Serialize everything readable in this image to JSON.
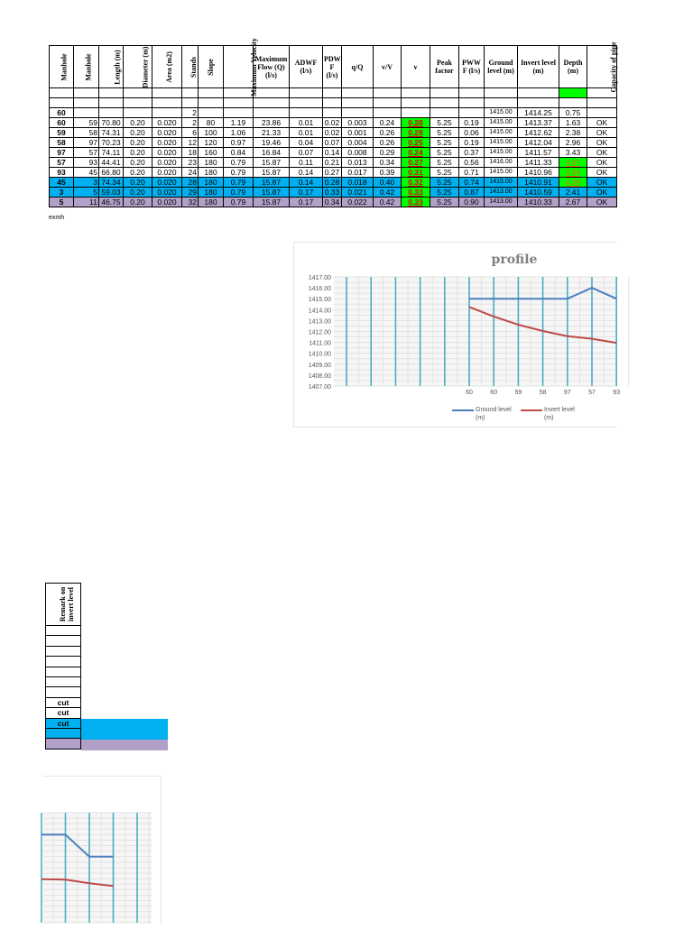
{
  "table": {
    "headers": [
      {
        "label": "Manhole",
        "rot": true
      },
      {
        "label": "Manhole",
        "rot": true
      },
      {
        "label": "Length (m)",
        "rot": true
      },
      {
        "label": "Diameter (m)",
        "rot": true
      },
      {
        "label": "Area (m2)",
        "rot": true
      },
      {
        "label": "Stands",
        "rot": true
      },
      {
        "label": "Slope",
        "rot": true
      },
      {
        "label": "Maximum Velocity",
        "rot": true
      },
      {
        "label": "Maximum Flow (Q) (l/s)",
        "rot": false
      },
      {
        "label": "ADWF (l/s)",
        "rot": false
      },
      {
        "label": "PDW F (l/s)",
        "rot": false
      },
      {
        "label": "q/Q",
        "rot": false
      },
      {
        "label": "v/V",
        "rot": false
      },
      {
        "label": "v",
        "rot": false
      },
      {
        "label": "Peak factor",
        "rot": false
      },
      {
        "label": "PWW F (l/s)",
        "rot": false
      },
      {
        "label": "Ground level (m)",
        "rot": false
      },
      {
        "label": "Invert level (m)",
        "rot": false
      },
      {
        "label": "Depth (m)",
        "rot": false
      },
      {
        "label": "Capacity of pipe",
        "rot": true
      }
    ],
    "rows": [
      {
        "cells": [
          "",
          "",
          "",
          "",
          "",
          "",
          "",
          "",
          "",
          "",
          "",
          "",
          "",
          "",
          "",
          "",
          "",
          "",
          "",
          ""
        ],
        "depth_fill": "#00ff00"
      },
      {
        "cells": [
          "",
          "",
          "",
          "",
          "",
          "",
          "",
          "",
          "",
          "",
          "",
          "",
          "",
          "",
          "",
          "",
          "",
          "",
          "",
          ""
        ]
      },
      {
        "cells": [
          "60",
          "",
          "",
          "",
          "",
          "2",
          "",
          "",
          "",
          "",
          "",
          "",
          "",
          "",
          "",
          "",
          "1415.00",
          "1414.25",
          "0.75",
          ""
        ]
      },
      {
        "cells": [
          "60",
          "59",
          "70.80",
          "0.20",
          "0.020",
          "2",
          "80",
          "1.19",
          "23.86",
          "0.01",
          "0.02",
          "0.003",
          "0.24",
          "0.28",
          "5.25",
          "0.19",
          "1415.00",
          "1413.37",
          "1.63",
          "OK"
        ]
      },
      {
        "cells": [
          "59",
          "58",
          "74.31",
          "0.20",
          "0.020",
          "6",
          "100",
          "1.06",
          "21.33",
          "0.01",
          "0.02",
          "0.001",
          "0.26",
          "0.28",
          "5.25",
          "0.06",
          "1415.00",
          "1412.62",
          "2.38",
          "OK"
        ]
      },
      {
        "cells": [
          "58",
          "97",
          "70.23",
          "0.20",
          "0.020",
          "12",
          "120",
          "0.97",
          "19.46",
          "0.04",
          "0.07",
          "0.004",
          "0.26",
          "0.25",
          "5.25",
          "0.19",
          "1415.00",
          "1412.04",
          "2.96",
          "OK"
        ]
      },
      {
        "cells": [
          "97",
          "57",
          "74.11",
          "0.20",
          "0.020",
          "18",
          "160",
          "0.84",
          "16.84",
          "0.07",
          "0.14",
          "0.008",
          "0.29",
          "0.24",
          "5.25",
          "0.37",
          "1415.00",
          "1411.57",
          "3.43",
          "OK"
        ]
      },
      {
        "cells": [
          "57",
          "93",
          "44.41",
          "0.20",
          "0.020",
          "23",
          "180",
          "0.79",
          "15.87",
          "0.11",
          "0.21",
          "0.013",
          "0.34",
          "0.27",
          "5.25",
          "0.56",
          "1416.00",
          "1411.33",
          "4.67",
          "OK"
        ],
        "depth_flag": true
      },
      {
        "cells": [
          "93",
          "45",
          "66.80",
          "0.20",
          "0.020",
          "24",
          "180",
          "0.79",
          "15.87",
          "0.14",
          "0.27",
          "0.017",
          "0.39",
          "0.31",
          "5.25",
          "0.71",
          "1415.00",
          "1410.96",
          "4.04",
          "OK"
        ],
        "depth_flag": true
      },
      {
        "cells": [
          "45",
          "3",
          "74.34",
          "0.20",
          "0.020",
          "28",
          "180",
          "0.79",
          "15.87",
          "0.14",
          "0.28",
          "0.018",
          "0.40",
          "0.32",
          "5.25",
          "0.74",
          "1415.00",
          "1410.91",
          "4.09",
          "OK"
        ],
        "depth_flag": true,
        "fill": "blue"
      },
      {
        "cells": [
          "3",
          "5",
          "59.03",
          "0.20",
          "0.020",
          "29",
          "180",
          "0.79",
          "15.87",
          "0.17",
          "0.33",
          "0.021",
          "0.42",
          "0.33",
          "5.25",
          "0.87",
          "1413.00",
          "1410.59",
          "2.41",
          "OK"
        ],
        "fill": "blue"
      },
      {
        "cells": [
          "5",
          "11",
          "46.75",
          "0.20",
          "0.020",
          "32",
          "180",
          "0.79",
          "15.87",
          "0.17",
          "0.34",
          "0.022",
          "0.42",
          "0.33",
          "5.25",
          "0.90",
          "1413.00",
          "1410.33",
          "2.67",
          "OK"
        ],
        "fill": "purple"
      }
    ],
    "note": "exmh"
  },
  "remark_table": {
    "header": "Remark on invert level",
    "rows": [
      {
        "value": ""
      },
      {
        "value": ""
      },
      {
        "value": ""
      },
      {
        "value": ""
      },
      {
        "value": ""
      },
      {
        "value": ""
      },
      {
        "value": ""
      },
      {
        "value": "cut"
      },
      {
        "value": "cut"
      },
      {
        "value": "cut",
        "fill": "blue"
      },
      {
        "value": "",
        "fill": "blue"
      },
      {
        "value": "",
        "fill": "purple"
      }
    ]
  },
  "colors": {
    "blue": "#00b0f0",
    "purple": "#b1a0c7",
    "green": "#00ff00",
    "ground": "#4a7ebb",
    "invert": "#be4b48",
    "gridline": "#4bacc6"
  },
  "chart_data": [
    {
      "type": "line",
      "title": "profile",
      "categories": [
        "",
        "",
        "",
        "",
        "",
        "60",
        "60",
        "59",
        "58",
        "97",
        "57",
        "93"
      ],
      "ylim": [
        1407,
        1417
      ],
      "yticks": [
        "1417.00",
        "1416.00",
        "1415.00",
        "1414.00",
        "1413.00",
        "1412.00",
        "1411.00",
        "1410.00",
        "1409.00",
        "1408.00",
        "1407.00"
      ],
      "grid": true,
      "legend": "bottom",
      "series": [
        {
          "name": "Ground level (m)",
          "color": "#4a7ebb",
          "values": [
            null,
            null,
            null,
            null,
            null,
            1415,
            1415,
            1415,
            1415,
            1415,
            1416,
            1415
          ]
        },
        {
          "name": "Invert level (m)",
          "color": "#be4b48",
          "values": [
            null,
            null,
            null,
            null,
            null,
            1414.25,
            1413.37,
            1412.62,
            1412.04,
            1411.57,
            1411.33,
            1410.96
          ]
        }
      ]
    },
    {
      "type": "line",
      "ylim": [
        1407,
        1417
      ],
      "grid": true,
      "series": [
        {
          "color": "#4a7ebb",
          "values": [
            1415,
            1415,
            1413,
            1413,
            null
          ]
        },
        {
          "color": "#be4b48",
          "values": [
            1410.96,
            1410.91,
            1410.59,
            1410.33,
            null
          ]
        }
      ]
    }
  ]
}
